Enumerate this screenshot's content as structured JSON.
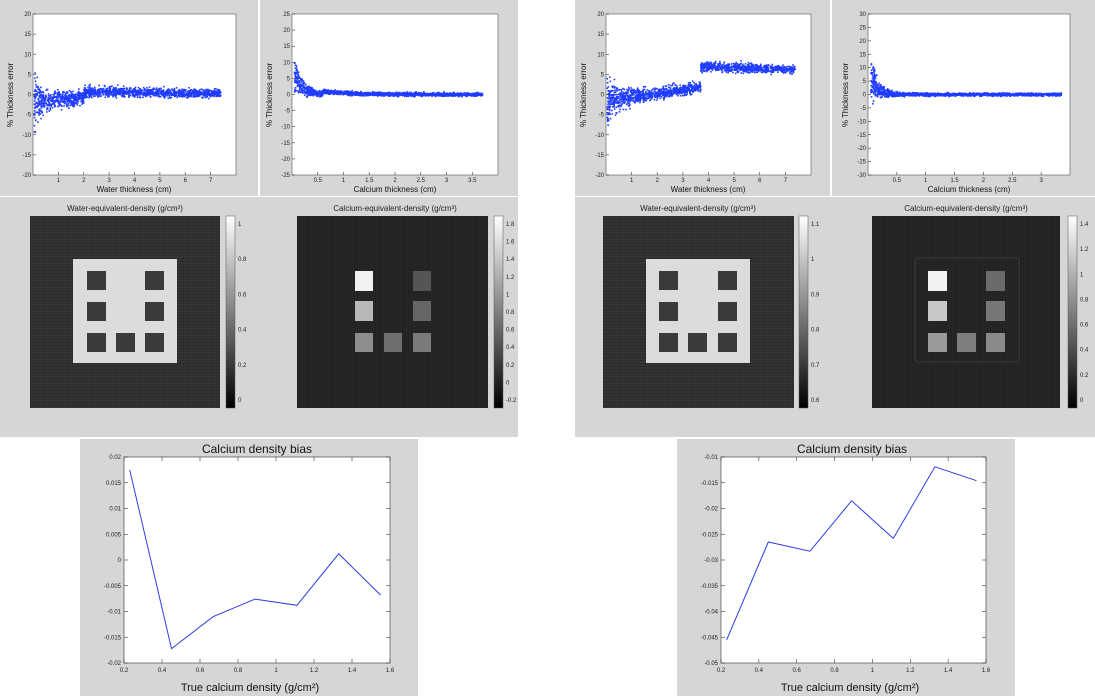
{
  "chart_data": [
    {
      "id": "s1",
      "type": "scatter",
      "xlabel": "Water thickness (cm)",
      "ylabel": "% Thickness error",
      "xlim": [
        0,
        8
      ],
      "ylim": [
        -20,
        20
      ],
      "x_ticks": [
        1,
        2,
        3,
        4,
        5,
        6,
        7
      ],
      "y_ticks": [
        -20,
        -15,
        -10,
        -5,
        0,
        5,
        10,
        15,
        20
      ],
      "color": "#1f3cff"
    },
    {
      "id": "s2",
      "type": "scatter",
      "xlabel": "Calcium thickness (cm)",
      "ylabel": "% Thickness error",
      "xlim": [
        0,
        4
      ],
      "ylim": [
        -25,
        25
      ],
      "x_ticks": [
        0.5,
        1,
        1.5,
        2,
        2.5,
        3,
        3.5
      ],
      "y_ticks": [
        -25,
        -20,
        -15,
        -10,
        -5,
        0,
        5,
        10,
        15,
        20,
        25
      ],
      "color": "#1f3cff"
    },
    {
      "id": "s3",
      "type": "scatter",
      "xlabel": "Water thickness (cm)",
      "ylabel": "% Thickness error",
      "xlim": [
        0,
        8
      ],
      "ylim": [
        -20,
        20
      ],
      "x_ticks": [
        1,
        2,
        3,
        4,
        5,
        6,
        7
      ],
      "y_ticks": [
        -20,
        -15,
        -10,
        -5,
        0,
        5,
        10,
        15,
        20
      ],
      "color": "#1f3cff"
    },
    {
      "id": "s4",
      "type": "scatter",
      "xlabel": "Calcium thickness (cm)",
      "ylabel": "% Thickness error",
      "xlim": [
        0,
        3.5
      ],
      "ylim": [
        -30,
        30
      ],
      "x_ticks": [
        0.5,
        1,
        1.5,
        2,
        2.5,
        3
      ],
      "y_ticks": [
        -30,
        -25,
        -20,
        -15,
        -10,
        -5,
        0,
        5,
        10,
        15,
        20,
        25,
        30
      ],
      "color": "#1f3cff"
    },
    {
      "id": "L1",
      "type": "line",
      "title": "Calcium density bias",
      "xlabel": "True calcium density (g/cm²)",
      "ylabel": "",
      "xlim": [
        0.2,
        1.6
      ],
      "ylim": [
        -0.02,
        0.02
      ],
      "x_ticks": [
        0.2,
        0.4,
        0.6,
        0.8,
        1,
        1.2,
        1.4,
        1.6
      ],
      "y_ticks": [
        -0.02,
        -0.015,
        -0.01,
        -0.005,
        0,
        0.005,
        0.01,
        0.015,
        0.02
      ],
      "x": [
        0.23,
        0.45,
        0.67,
        0.89,
        1.11,
        1.33,
        1.55
      ],
      "values": [
        0.0175,
        -0.0172,
        -0.011,
        -0.0076,
        -0.0088,
        0.0012,
        -0.0068
      ],
      "color": "#2a3fe0"
    },
    {
      "id": "L2",
      "type": "line",
      "title": "Calcium density bias",
      "xlabel": "True calcium density (g/cm²)",
      "ylabel": "",
      "xlim": [
        0.2,
        1.6
      ],
      "ylim": [
        -0.05,
        -0.01
      ],
      "x_ticks": [
        0.2,
        0.4,
        0.6,
        0.8,
        1,
        1.2,
        1.4,
        1.6
      ],
      "y_ticks": [
        -0.05,
        -0.045,
        -0.04,
        -0.035,
        -0.03,
        -0.025,
        -0.02,
        -0.015,
        -0.01
      ],
      "x": [
        0.23,
        0.45,
        0.67,
        0.89,
        1.11,
        1.33,
        1.55
      ],
      "values": [
        -0.0455,
        -0.0265,
        -0.0283,
        -0.0185,
        -0.0258,
        -0.0119,
        -0.0146
      ],
      "color": "#2a3fe0"
    }
  ],
  "images": [
    {
      "title": "Water-equivalent-density (g/cm³)",
      "colorbar_ticks": [
        "1",
        "0.8",
        "0.6",
        "0.4",
        "0.2",
        "0"
      ]
    },
    {
      "title": "Calcium-equivalent-density (g/cm³)",
      "colorbar_ticks": [
        "1.8",
        "1.6",
        "1.4",
        "1.2",
        "1",
        "0.8",
        "0.6",
        "0.4",
        "0.2",
        "0",
        "-0.2"
      ]
    },
    {
      "title": "Water-equivalent-density (g/cm³)",
      "colorbar_ticks": [
        "1.1",
        "1",
        "0.9",
        "0.8",
        "0.7",
        "0.6"
      ]
    },
    {
      "title": "Calcium-equivalent-density (g/cm³)",
      "colorbar_ticks": [
        "1.4",
        "1.2",
        "1",
        "0.8",
        "0.6",
        "0.4",
        "0.2",
        "0"
      ]
    }
  ]
}
